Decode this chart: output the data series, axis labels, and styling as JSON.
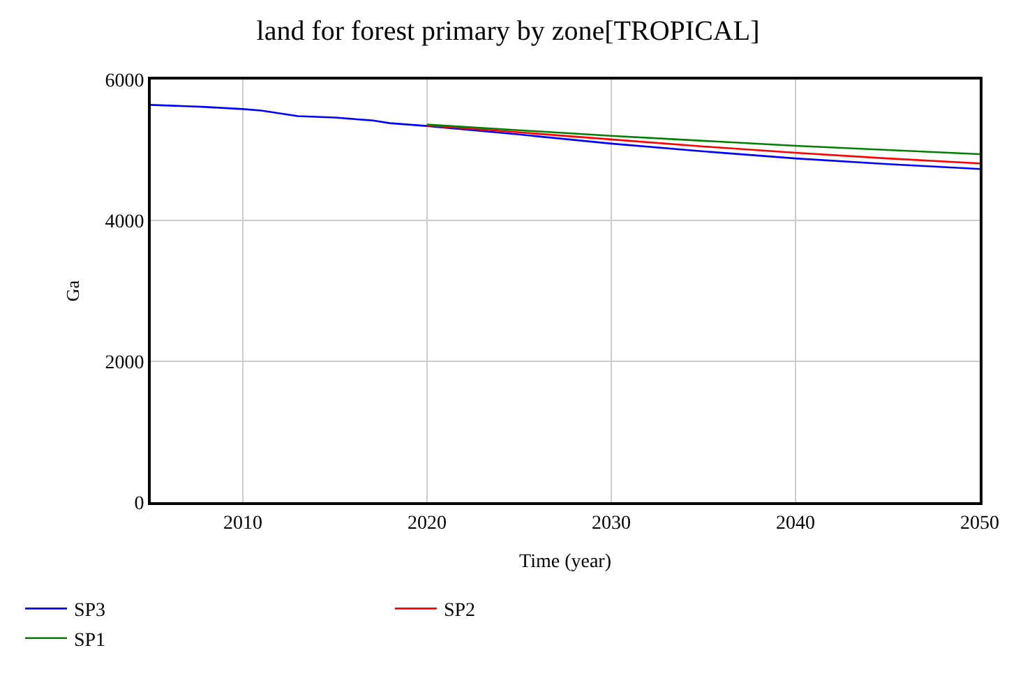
{
  "chart_data": {
    "type": "line",
    "title": "land for forest primary by zone[TROPICAL]",
    "xlabel": "Time (year)",
    "ylabel": "Ga",
    "x": [
      2005,
      2008,
      2010,
      2011,
      2013,
      2015,
      2017,
      2018,
      2020,
      2025,
      2030,
      2035,
      2040,
      2045,
      2050
    ],
    "series": [
      {
        "name": "SP3",
        "color": "#0000ff",
        "values": [
          5640,
          5610,
          5580,
          5560,
          5480,
          5460,
          5420,
          5380,
          5340,
          5220,
          5090,
          4980,
          4880,
          4800,
          4730
        ]
      },
      {
        "name": "SP2",
        "color": "#ff0000",
        "values": [
          null,
          null,
          null,
          null,
          null,
          null,
          null,
          null,
          5350,
          5250,
          5150,
          5050,
          4960,
          4880,
          4810
        ]
      },
      {
        "name": "SP1",
        "color": "#008000",
        "values": [
          null,
          null,
          null,
          null,
          null,
          null,
          null,
          null,
          5360,
          5280,
          5200,
          5130,
          5060,
          5000,
          4940
        ]
      }
    ],
    "xlim": [
      2005,
      2050
    ],
    "xticks": [
      2010,
      2020,
      2030,
      2040,
      2050
    ],
    "ylim": [
      0,
      6000
    ],
    "yticks": [
      0,
      2000,
      4000,
      6000
    ],
    "grid": true,
    "legend": "bottom",
    "marker": "none",
    "line_style": "solid"
  }
}
